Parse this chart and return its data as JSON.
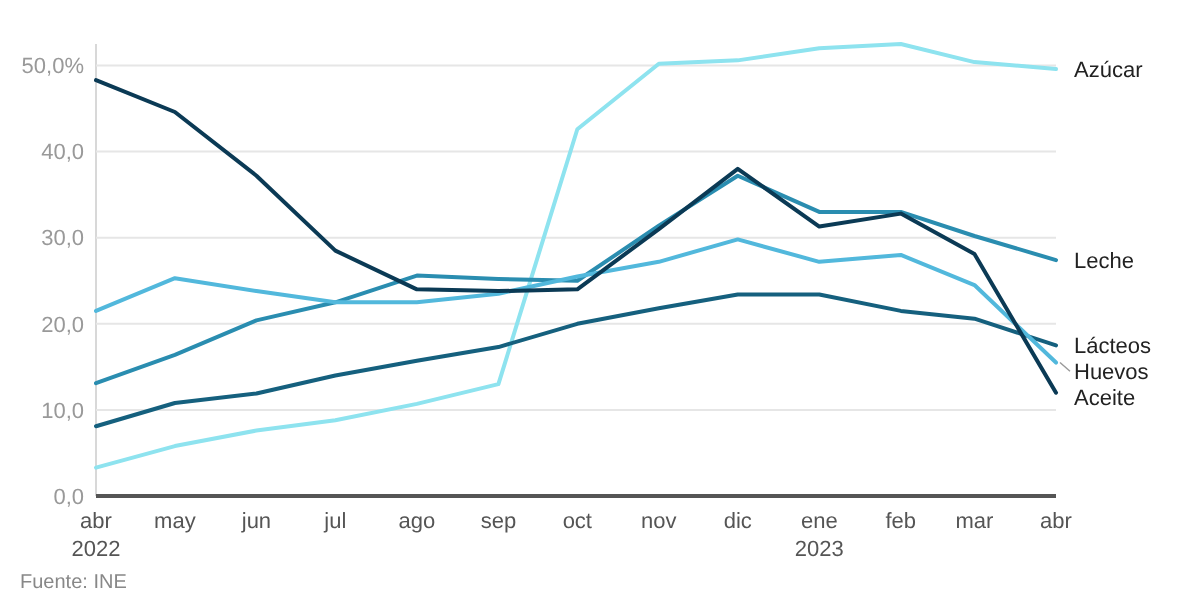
{
  "chart_data": {
    "type": "line",
    "x": [
      "2022-04",
      "2022-05",
      "2022-06",
      "2022-07",
      "2022-08",
      "2022-09",
      "2022-10",
      "2022-11",
      "2022-12",
      "2023-01",
      "2023-02",
      "2023-03",
      "2023-04"
    ],
    "series": [
      {
        "name": "Azúcar",
        "color": "#8ee3ef",
        "values": [
          3.3,
          5.8,
          7.6,
          8.8,
          10.7,
          13,
          42.6,
          50.2,
          50.6,
          52,
          52.5,
          50.4,
          49.6
        ]
      },
      {
        "name": "Leche",
        "color": "#2a8db0",
        "values": [
          13.1,
          16.4,
          20.4,
          22.5,
          25.6,
          25.2,
          25,
          31.4,
          37.2,
          33,
          33,
          30.2,
          27.4
        ]
      },
      {
        "name": "Lácteos",
        "color": "#15607e",
        "values": [
          8.1,
          10.8,
          11.9,
          14,
          15.7,
          17.3,
          20,
          21.8,
          23.4,
          23.4,
          21.5,
          20.6,
          17.5
        ]
      },
      {
        "name": "Huevos",
        "color": "#52b8dc",
        "values": [
          21.5,
          25.3,
          23.8,
          22.5,
          22.5,
          23.5,
          25.5,
          27.2,
          29.8,
          27.2,
          28,
          24.5,
          15.5
        ]
      },
      {
        "name": "Aceite",
        "color": "#0b3a55",
        "values": [
          48.3,
          44.6,
          37.2,
          28.5,
          24,
          23.8,
          24,
          31,
          38,
          31.3,
          32.8,
          28.1,
          12
        ]
      }
    ],
    "xlim": [
      "2022-04",
      "2023-04"
    ],
    "xticks": [
      {
        "value": "2022-04",
        "label": "abr\n2022"
      },
      {
        "value": "2022-05",
        "label": "may"
      },
      {
        "value": "2022-06",
        "label": "jun"
      },
      {
        "value": "2022-07",
        "label": "jul"
      },
      {
        "value": "2022-08",
        "label": "ago"
      },
      {
        "value": "2022-09",
        "label": "sep"
      },
      {
        "value": "2022-10",
        "label": "oct"
      },
      {
        "value": "2022-11",
        "label": "nov"
      },
      {
        "value": "2022-12",
        "label": "dic"
      },
      {
        "value": "2023-01",
        "label": "ene\n2023"
      },
      {
        "value": "2023-02",
        "label": "feb"
      },
      {
        "value": "2023-03",
        "label": "mar"
      },
      {
        "value": "2023-04",
        "label": "abr"
      }
    ],
    "ylim": [
      0,
      52.5
    ],
    "yticks": [
      {
        "value": 0,
        "label": "0,0"
      },
      {
        "value": 10,
        "label": "10,0"
      },
      {
        "value": 20,
        "label": "20,0"
      },
      {
        "value": 30,
        "label": "30,0"
      },
      {
        "value": 40,
        "label": "40,0"
      },
      {
        "value": 50,
        "label": "50,0%"
      }
    ],
    "grid": "y",
    "line_style": "solid",
    "marker": "none",
    "annotations": [
      "Fuente: INE"
    ]
  }
}
